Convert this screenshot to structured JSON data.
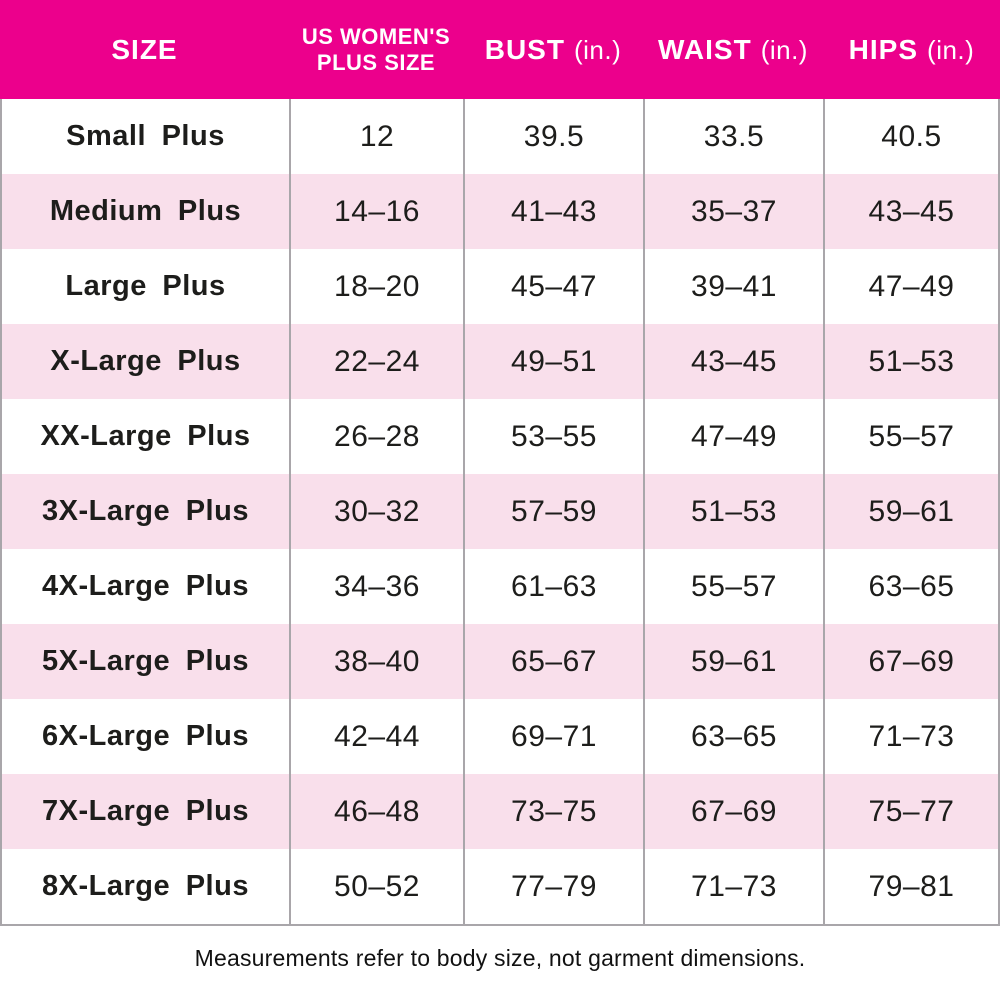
{
  "chart_data": {
    "type": "table",
    "columns": [
      {
        "header": "SIZE",
        "unit": ""
      },
      {
        "header": "US WOMEN'S PLUS SIZE",
        "unit": "",
        "header_lines": [
          "US WOMEN'S",
          "PLUS SIZE"
        ]
      },
      {
        "header": "BUST",
        "unit": "(in.)"
      },
      {
        "header": "WAIST",
        "unit": "(in.)"
      },
      {
        "header": "HIPS",
        "unit": "(in.)"
      }
    ],
    "rows": [
      [
        "Small Plus",
        "12",
        "39.5",
        "33.5",
        "40.5"
      ],
      [
        "Medium Plus",
        "14–16",
        "41–43",
        "35–37",
        "43–45"
      ],
      [
        "Large Plus",
        "18–20",
        "45–47",
        "39–41",
        "47–49"
      ],
      [
        "X-Large Plus",
        "22–24",
        "49–51",
        "43–45",
        "51–53"
      ],
      [
        "XX-Large Plus",
        "26–28",
        "53–55",
        "47–49",
        "55–57"
      ],
      [
        "3X-Large Plus",
        "30–32",
        "57–59",
        "51–53",
        "59–61"
      ],
      [
        "4X-Large Plus",
        "34–36",
        "61–63",
        "55–57",
        "63–65"
      ],
      [
        "5X-Large Plus",
        "38–40",
        "65–67",
        "59–61",
        "67–69"
      ],
      [
        "6X-Large Plus",
        "42–44",
        "69–71",
        "63–65",
        "71–73"
      ],
      [
        "7X-Large Plus",
        "46–48",
        "73–75",
        "67–69",
        "75–77"
      ],
      [
        "8X-Large Plus",
        "50–52",
        "77–79",
        "71–73",
        "79–81"
      ]
    ],
    "colors": {
      "header_bg": "#ec008c",
      "header_text": "#ffffff",
      "row_bg": "#ffffff",
      "row_alt_bg": "#f9dfeb",
      "grid_line": "#a9a6aa",
      "body_text": "#1d1d1b"
    },
    "layout_hints": {
      "striping": "rows alternate white then light pink, first data row white",
      "grid": "vertical separators and outer left/right/bottom border only"
    }
  },
  "footer": {
    "note": "Measurements refer to body size, not garment dimensions."
  }
}
